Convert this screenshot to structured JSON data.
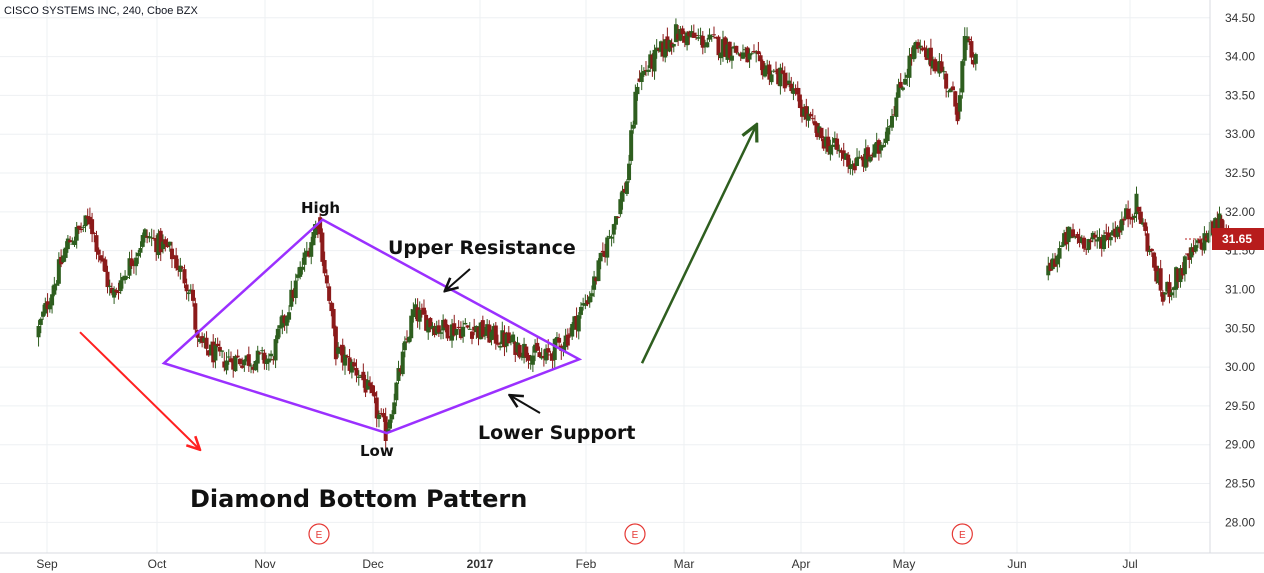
{
  "header": {
    "title": "CISCO SYSTEMS INC, 240, Cboe BZX"
  },
  "pattern_title": "Diamond Bottom Pattern",
  "annotations": {
    "high": "High",
    "low": "Low",
    "upper_resistance": "Upper Resistance",
    "lower_support": "Lower Support"
  },
  "earnings_marker": "E",
  "colors": {
    "up_candle": "#2e5e1f",
    "down_candle": "#8b1a1a",
    "diamond": "#9b30ff",
    "downtrend_arrow": "#ff2020",
    "uptrend_arrow": "#2e5e1f",
    "grid": "#eef0f3",
    "price_tag": "#b71c1c",
    "earnings": "#e53935"
  },
  "chart_data": {
    "type": "candlestick",
    "title": "CISCO SYSTEMS INC, 240, Cboe BZX",
    "y_ticks": [
      "28.00",
      "28.50",
      "29.00",
      "29.50",
      "30.00",
      "30.50",
      "31.00",
      "31.50",
      "32.00",
      "32.50",
      "33.00",
      "33.50",
      "34.00",
      "34.50"
    ],
    "ylim": [
      27.85,
      34.6
    ],
    "x_ticks": [
      "Sep",
      "Oct",
      "Nov",
      "Dec",
      "2017",
      "Feb",
      "Mar",
      "Apr",
      "May",
      "Jun",
      "Jul"
    ],
    "current_price": "31.65",
    "price_path": [
      {
        "date": "2016-08-29",
        "price": 30.4
      },
      {
        "date": "2016-09-07",
        "price": 31.6
      },
      {
        "date": "2016-09-13",
        "price": 31.9
      },
      {
        "date": "2016-09-19",
        "price": 30.9
      },
      {
        "date": "2016-09-28",
        "price": 31.7
      },
      {
        "date": "2016-10-05",
        "price": 31.5
      },
      {
        "date": "2016-10-11",
        "price": 31.0
      },
      {
        "date": "2016-10-13",
        "price": 30.3
      },
      {
        "date": "2016-10-20",
        "price": 30.1
      },
      {
        "date": "2016-11-03",
        "price": 30.1
      },
      {
        "date": "2016-11-08",
        "price": 30.8
      },
      {
        "date": "2016-11-16",
        "price": 31.9
      },
      {
        "date": "2016-11-21",
        "price": 30.2
      },
      {
        "date": "2016-11-28",
        "price": 29.9
      },
      {
        "date": "2016-12-05",
        "price": 29.15
      },
      {
        "date": "2016-12-13",
        "price": 30.7
      },
      {
        "date": "2016-12-21",
        "price": 30.5
      },
      {
        "date": "2016-12-30",
        "price": 30.5
      },
      {
        "date": "2017-01-11",
        "price": 30.3
      },
      {
        "date": "2017-01-20",
        "price": 30.1
      },
      {
        "date": "2017-01-27",
        "price": 30.4
      },
      {
        "date": "2017-02-03",
        "price": 31.0
      },
      {
        "date": "2017-02-13",
        "price": 32.4
      },
      {
        "date": "2017-02-16",
        "price": 33.7
      },
      {
        "date": "2017-02-27",
        "price": 34.3
      },
      {
        "date": "2017-03-14",
        "price": 34.1
      },
      {
        "date": "2017-03-28",
        "price": 33.7
      },
      {
        "date": "2017-04-06",
        "price": 33.0
      },
      {
        "date": "2017-04-17",
        "price": 32.6
      },
      {
        "date": "2017-04-24",
        "price": 32.8
      },
      {
        "date": "2017-05-04",
        "price": 34.1
      },
      {
        "date": "2017-05-11",
        "price": 33.9
      },
      {
        "date": "2017-05-16",
        "price": 33.3
      },
      {
        "date": "2017-05-18",
        "price": 34.2
      },
      {
        "date": "2017-05-21",
        "price": 33.9
      },
      {
        "date": "2017-05-22",
        "price": null
      },
      {
        "date": "2017-06-08",
        "price": null
      },
      {
        "date": "2017-06-09",
        "price": 31.2
      },
      {
        "date": "2017-06-15",
        "price": 31.7
      },
      {
        "date": "2017-06-22",
        "price": 31.6
      },
      {
        "date": "2017-06-28",
        "price": 31.8
      },
      {
        "date": "2017-07-03",
        "price": 32.1
      },
      {
        "date": "2017-07-10",
        "price": 30.9
      },
      {
        "date": "2017-07-17",
        "price": 31.4
      },
      {
        "date": "2017-07-25",
        "price": 31.9
      },
      {
        "date": "2017-07-28",
        "price": 31.65
      }
    ],
    "diamond": [
      {
        "date": "2016-10-03",
        "price": 30.05
      },
      {
        "date": "2016-11-17",
        "price": 31.9
      },
      {
        "date": "2017-01-30",
        "price": 30.1
      },
      {
        "date": "2016-12-05",
        "price": 29.15
      }
    ],
    "downtrend_arrow": {
      "from": {
        "date": "2016-09-10",
        "price": 30.45
      },
      "to": {
        "date": "2016-10-13",
        "price": 28.95
      }
    },
    "uptrend_arrow": {
      "from": {
        "date": "2017-02-17",
        "price": 30.05
      },
      "to": {
        "date": "2017-03-20",
        "price": 33.1
      }
    },
    "earnings_dates": [
      "2016-11-16",
      "2017-02-15",
      "2017-05-17"
    ],
    "grid": true,
    "legend": "none"
  }
}
